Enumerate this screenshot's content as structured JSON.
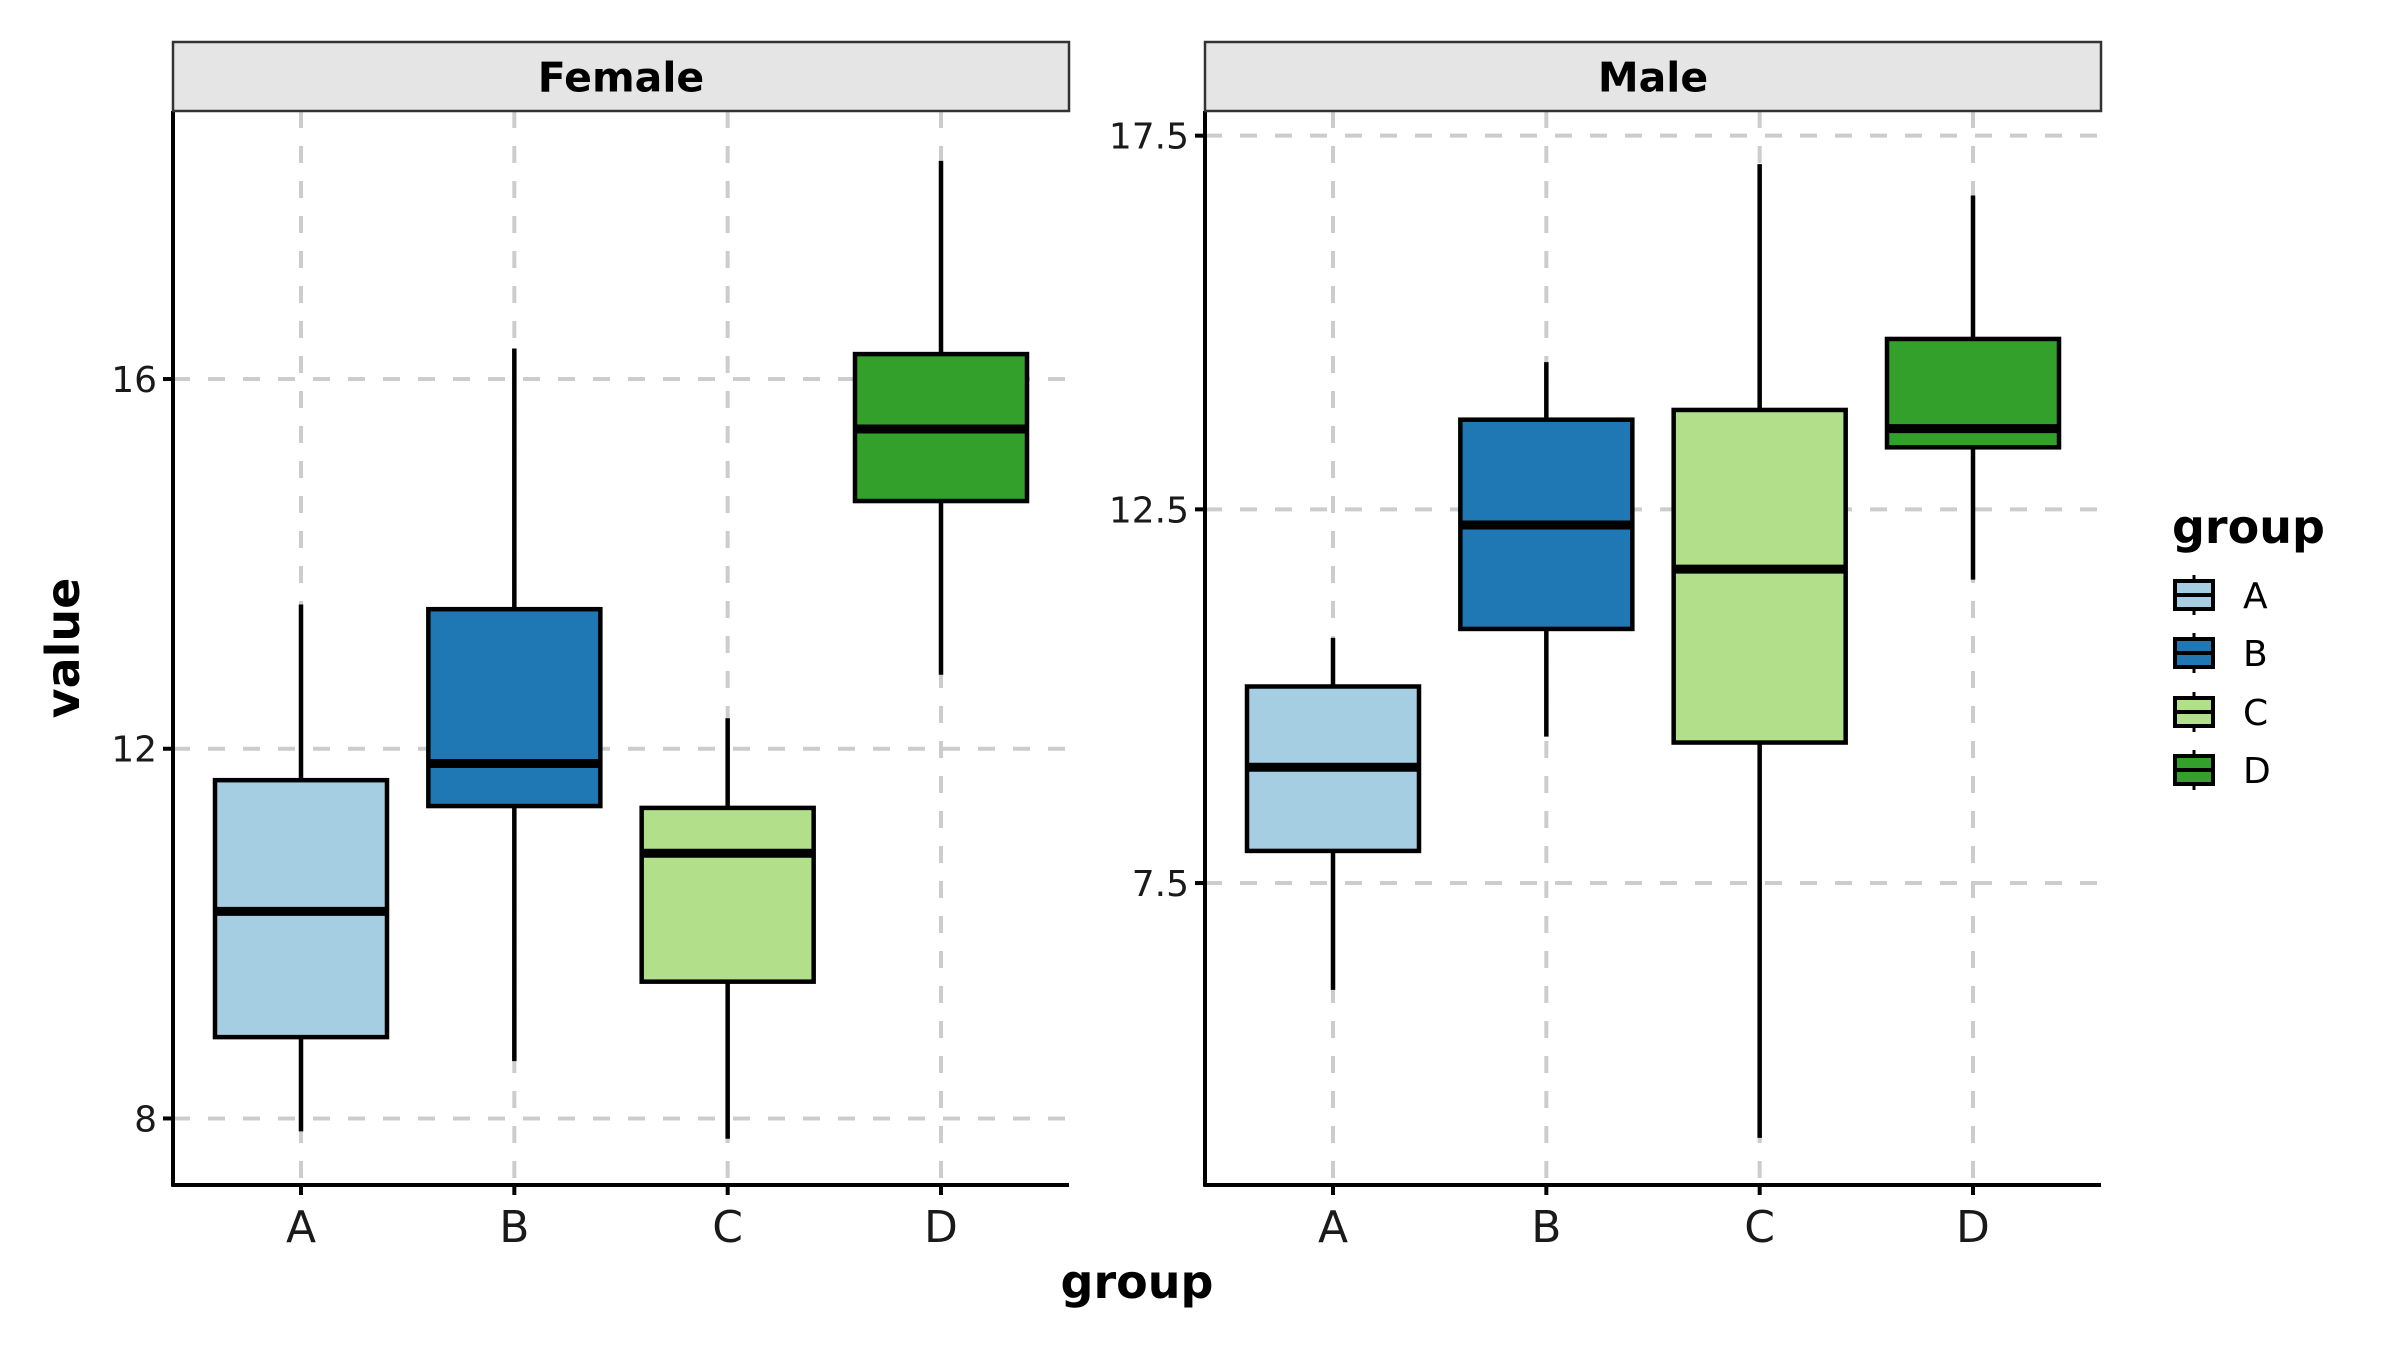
{
  "chart_data": {
    "type": "box",
    "facet_variable": "gender",
    "xlabel": "group",
    "ylabel": "value",
    "categories": [
      "A",
      "B",
      "C",
      "D"
    ],
    "grid": "dashed major gridlines (x and y)",
    "legend": {
      "title": "group",
      "position": "right",
      "entries": [
        {
          "label": "A",
          "color": "#A6CEE3"
        },
        {
          "label": "B",
          "color": "#1F78B4"
        },
        {
          "label": "C",
          "color": "#B2DF8A"
        },
        {
          "label": "D",
          "color": "#33A02C"
        }
      ]
    },
    "panels": [
      {
        "strip": "Female",
        "ylim": [
          7.28,
          18.9
        ],
        "yticks": [
          8,
          12,
          16
        ],
        "ytick_labels": [
          "8",
          "12",
          "16"
        ],
        "boxes": [
          {
            "group": "A",
            "whisker_low": 7.86,
            "q1": 8.88,
            "median": 10.24,
            "q3": 11.66,
            "whisker_high": 13.56
          },
          {
            "group": "B",
            "whisker_low": 8.62,
            "q1": 11.38,
            "median": 11.84,
            "q3": 13.51,
            "whisker_high": 16.33
          },
          {
            "group": "C",
            "whisker_low": 7.78,
            "q1": 9.48,
            "median": 10.87,
            "q3": 11.36,
            "whisker_high": 12.33
          },
          {
            "group": "D",
            "whisker_low": 12.8,
            "q1": 14.68,
            "median": 15.46,
            "q3": 16.27,
            "whisker_high": 18.36
          }
        ]
      },
      {
        "strip": "Male",
        "ylim": [
          3.46,
          17.83
        ],
        "yticks": [
          7.5,
          12.5,
          17.5
        ],
        "ytick_labels": [
          "7.5",
          "12.5",
          "17.5"
        ],
        "boxes": [
          {
            "group": "A",
            "whisker_low": 6.07,
            "q1": 7.93,
            "median": 9.05,
            "q3": 10.13,
            "whisker_high": 10.78
          },
          {
            "group": "B",
            "whisker_low": 9.46,
            "q1": 10.9,
            "median": 12.29,
            "q3": 13.7,
            "whisker_high": 14.47
          },
          {
            "group": "C",
            "whisker_low": 4.09,
            "q1": 9.38,
            "median": 11.7,
            "q3": 13.83,
            "whisker_high": 17.12
          },
          {
            "group": "D",
            "whisker_low": 11.56,
            "q1": 13.33,
            "median": 13.58,
            "q3": 14.78,
            "whisker_high": 16.7
          }
        ]
      }
    ]
  },
  "colors": {
    "strip_fill": "#E5E5E5",
    "grid": "#CCCCCC",
    "axis": "#000000"
  }
}
